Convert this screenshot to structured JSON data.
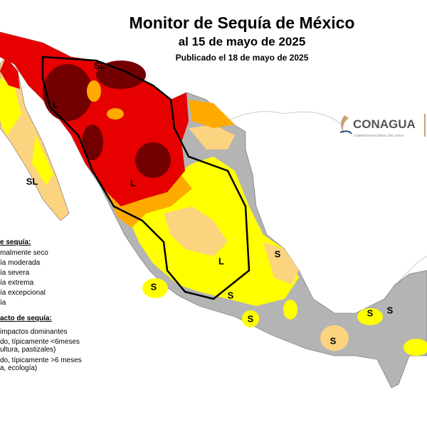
{
  "header": {
    "title": "Monitor de Sequía de México",
    "subtitle": "al 15 de mayo de 2025",
    "published": "Publicado el 18 de mayo de 2025"
  },
  "logo": {
    "name": "CONAGUA",
    "tagline": "COMISIÓN NACIONAL DEL AGUA"
  },
  "legend": {
    "title": "e sequía:",
    "items": [
      "malmente seco",
      "ía moderada",
      "ía severa",
      "ía extrema",
      "ía excepcional",
      "ía"
    ]
  },
  "impact": {
    "title": "acto de sequía:",
    "items": [
      "impactos dominantes",
      "do, típicamente <6meses",
      "ultura, pastizales)",
      "do, típicamente >6 meses",
      "a, ecología)"
    ]
  },
  "map_labels": [
    "SL",
    "L",
    "SL",
    "L",
    "L",
    "S",
    "S",
    "S",
    "S",
    "S",
    "S",
    "S"
  ]
}
